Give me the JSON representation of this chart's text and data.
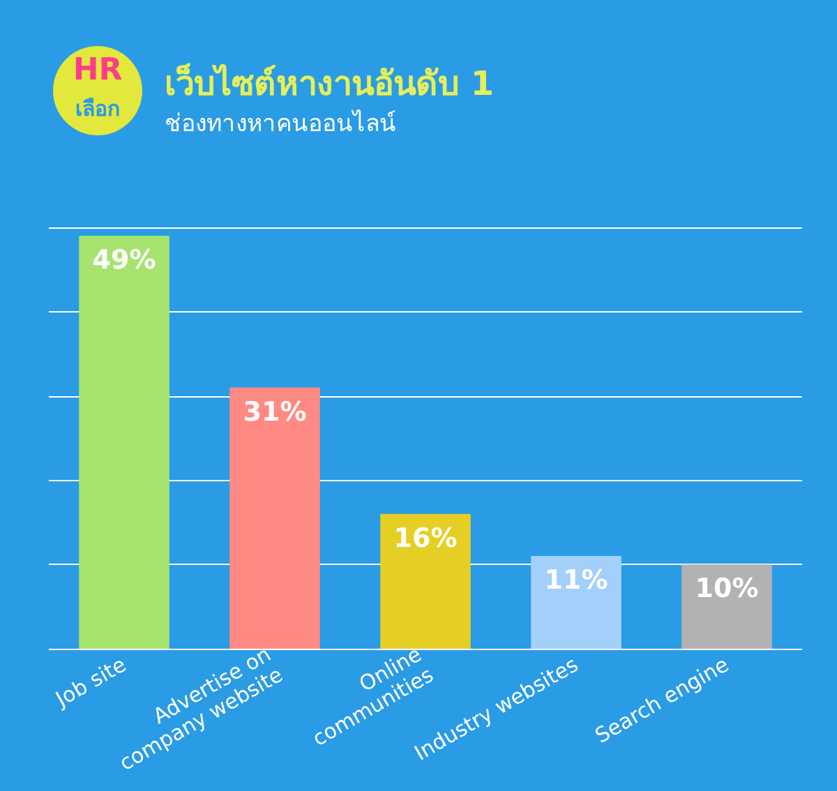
{
  "chart_data": {
    "type": "bar",
    "title": "เว็บไซต์หางานอันดับ 1",
    "subtitle": "ช่องทางหาคนออนไลน์",
    "annotations": [
      "HR",
      "เลือก"
    ],
    "categories": [
      "Job site",
      "Advertise on\ncompany website",
      "Online\ncommunities",
      "Industry websites",
      "Search engine"
    ],
    "values": [
      49,
      31,
      16,
      11,
      10
    ],
    "value_labels": [
      "49%",
      "31%",
      "16%",
      "11%",
      "10%"
    ],
    "colors": [
      "#a6e36f",
      "#ff8a84",
      "#e5cf25",
      "#a3cffb",
      "#b2b2b2"
    ],
    "ylim": [
      0,
      50
    ],
    "yticks": [
      {
        "value": 0,
        "label": null
      },
      {
        "value": 10,
        "label": null
      },
      {
        "value": 20,
        "label": null
      },
      {
        "value": 30,
        "label": null
      },
      {
        "value": 40,
        "label": null
      },
      {
        "value": 50,
        "label": null
      }
    ],
    "grid": "y",
    "tick_labels": "x"
  }
}
